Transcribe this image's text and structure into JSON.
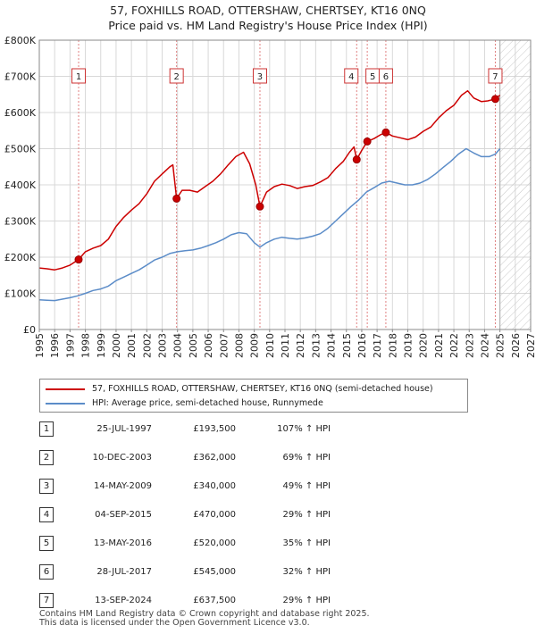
{
  "chart_data": {
    "type": "line",
    "title": "57, FOXHILLS ROAD, OTTERSHAW, CHERTSEY, KT16 0NQ",
    "subtitle": "Price paid vs. HM Land Registry's House Price Index (HPI)",
    "ylim": [
      0,
      800000
    ],
    "xlim": [
      1995,
      2027
    ],
    "y_ticks": [
      0,
      100000,
      200000,
      300000,
      400000,
      500000,
      600000,
      700000,
      800000
    ],
    "y_tick_labels": [
      "£0",
      "£100K",
      "£200K",
      "£300K",
      "£400K",
      "£500K",
      "£600K",
      "£700K",
      "£800K"
    ],
    "x_ticks": [
      1995,
      1996,
      1997,
      1998,
      1999,
      2000,
      2001,
      2002,
      2003,
      2004,
      2005,
      2006,
      2007,
      2008,
      2009,
      2010,
      2011,
      2012,
      2013,
      2014,
      2015,
      2016,
      2017,
      2018,
      2019,
      2020,
      2021,
      2022,
      2023,
      2024,
      2025,
      2026,
      2027
    ],
    "x_tick_labels": [
      "1995",
      "1996",
      "1997",
      "1998",
      "1999",
      "2000",
      "2001",
      "2002",
      "2003",
      "2004",
      "2005",
      "2006",
      "2007",
      "2008",
      "2009",
      "2010",
      "2011",
      "2012",
      "2013",
      "2014",
      "2015",
      "2016",
      "2017",
      "2018",
      "2019",
      "2020",
      "2021",
      "2022",
      "2023",
      "2024",
      "2025",
      "2026",
      "2027"
    ],
    "grid": true,
    "forecast_from": 2025.0,
    "series": [
      {
        "name": "57, FOXHILLS ROAD, OTTERSHAW, CHERTSEY, KT16 0NQ (semi-detached house)",
        "color": "#cc0000",
        "points": [
          [
            1995.0,
            170000
          ],
          [
            1995.5,
            168000
          ],
          [
            1996.0,
            165000
          ],
          [
            1996.5,
            170000
          ],
          [
            1997.0,
            178000
          ],
          [
            1997.56,
            193500
          ],
          [
            1998.0,
            215000
          ],
          [
            1998.5,
            225000
          ],
          [
            1999.0,
            232000
          ],
          [
            1999.5,
            250000
          ],
          [
            2000.0,
            285000
          ],
          [
            2000.5,
            310000
          ],
          [
            2001.0,
            330000
          ],
          [
            2001.5,
            348000
          ],
          [
            2002.0,
            375000
          ],
          [
            2002.5,
            410000
          ],
          [
            2003.0,
            430000
          ],
          [
            2003.5,
            450000
          ],
          [
            2003.7,
            455000
          ],
          [
            2003.94,
            362000
          ],
          [
            2004.3,
            385000
          ],
          [
            2004.8,
            385000
          ],
          [
            2005.3,
            380000
          ],
          [
            2005.8,
            395000
          ],
          [
            2006.3,
            410000
          ],
          [
            2006.8,
            430000
          ],
          [
            2007.3,
            455000
          ],
          [
            2007.8,
            478000
          ],
          [
            2008.3,
            490000
          ],
          [
            2008.7,
            458000
          ],
          [
            2009.1,
            400000
          ],
          [
            2009.37,
            340000
          ],
          [
            2009.8,
            380000
          ],
          [
            2010.3,
            395000
          ],
          [
            2010.8,
            402000
          ],
          [
            2011.3,
            398000
          ],
          [
            2011.8,
            390000
          ],
          [
            2012.3,
            395000
          ],
          [
            2012.8,
            398000
          ],
          [
            2013.3,
            408000
          ],
          [
            2013.8,
            420000
          ],
          [
            2014.3,
            445000
          ],
          [
            2014.8,
            465000
          ],
          [
            2015.2,
            490000
          ],
          [
            2015.5,
            505000
          ],
          [
            2015.67,
            470000
          ],
          [
            2016.0,
            495000
          ],
          [
            2016.36,
            520000
          ],
          [
            2016.8,
            528000
          ],
          [
            2017.2,
            538000
          ],
          [
            2017.57,
            545000
          ],
          [
            2018.0,
            535000
          ],
          [
            2018.5,
            530000
          ],
          [
            2019.0,
            525000
          ],
          [
            2019.5,
            532000
          ],
          [
            2020.0,
            548000
          ],
          [
            2020.5,
            560000
          ],
          [
            2021.0,
            585000
          ],
          [
            2021.5,
            605000
          ],
          [
            2022.0,
            620000
          ],
          [
            2022.5,
            648000
          ],
          [
            2022.9,
            660000
          ],
          [
            2023.3,
            640000
          ],
          [
            2023.8,
            630000
          ],
          [
            2024.2,
            632000
          ],
          [
            2024.7,
            637500
          ],
          [
            2025.0,
            648000
          ]
        ]
      },
      {
        "name": "HPI: Average price, semi-detached house, Runnymede",
        "color": "#5b8cc8",
        "points": [
          [
            1995.0,
            82000
          ],
          [
            1995.5,
            81000
          ],
          [
            1996.0,
            80000
          ],
          [
            1996.5,
            84000
          ],
          [
            1997.0,
            88000
          ],
          [
            1997.5,
            93000
          ],
          [
            1998.0,
            100000
          ],
          [
            1998.5,
            108000
          ],
          [
            1999.0,
            112000
          ],
          [
            1999.5,
            120000
          ],
          [
            2000.0,
            135000
          ],
          [
            2000.5,
            145000
          ],
          [
            2001.0,
            155000
          ],
          [
            2001.5,
            165000
          ],
          [
            2002.0,
            178000
          ],
          [
            2002.5,
            192000
          ],
          [
            2003.0,
            200000
          ],
          [
            2003.5,
            210000
          ],
          [
            2004.0,
            215000
          ],
          [
            2004.5,
            218000
          ],
          [
            2005.0,
            220000
          ],
          [
            2005.5,
            225000
          ],
          [
            2006.0,
            232000
          ],
          [
            2006.5,
            240000
          ],
          [
            2007.0,
            250000
          ],
          [
            2007.5,
            262000
          ],
          [
            2008.0,
            268000
          ],
          [
            2008.5,
            265000
          ],
          [
            2009.0,
            240000
          ],
          [
            2009.37,
            228000
          ],
          [
            2009.8,
            240000
          ],
          [
            2010.3,
            250000
          ],
          [
            2010.8,
            255000
          ],
          [
            2011.3,
            252000
          ],
          [
            2011.8,
            250000
          ],
          [
            2012.3,
            253000
          ],
          [
            2012.8,
            258000
          ],
          [
            2013.3,
            265000
          ],
          [
            2013.8,
            280000
          ],
          [
            2014.3,
            300000
          ],
          [
            2014.8,
            320000
          ],
          [
            2015.3,
            340000
          ],
          [
            2015.8,
            358000
          ],
          [
            2016.3,
            380000
          ],
          [
            2016.8,
            392000
          ],
          [
            2017.3,
            405000
          ],
          [
            2017.8,
            410000
          ],
          [
            2018.3,
            405000
          ],
          [
            2018.8,
            400000
          ],
          [
            2019.3,
            400000
          ],
          [
            2019.8,
            405000
          ],
          [
            2020.3,
            415000
          ],
          [
            2020.8,
            430000
          ],
          [
            2021.3,
            448000
          ],
          [
            2021.8,
            465000
          ],
          [
            2022.3,
            485000
          ],
          [
            2022.8,
            500000
          ],
          [
            2023.3,
            488000
          ],
          [
            2023.8,
            478000
          ],
          [
            2024.3,
            478000
          ],
          [
            2024.7,
            485000
          ],
          [
            2025.0,
            500000
          ]
        ]
      }
    ],
    "sales": [
      {
        "label": "1",
        "x": 1997.56,
        "y": 193500,
        "date": "25-JUL-1997",
        "price": "£193,500",
        "hpi": "107% ↑ HPI"
      },
      {
        "label": "2",
        "x": 2003.94,
        "y": 362000,
        "date": "10-DEC-2003",
        "price": "£362,000",
        "hpi": "69% ↑ HPI"
      },
      {
        "label": "3",
        "x": 2009.37,
        "y": 340000,
        "date": "14-MAY-2009",
        "price": "£340,000",
        "hpi": "49% ↑ HPI"
      },
      {
        "label": "4",
        "x": 2015.67,
        "y": 470000,
        "date": "04-SEP-2015",
        "price": "£470,000",
        "hpi": "29% ↑ HPI"
      },
      {
        "label": "5",
        "x": 2016.36,
        "y": 520000,
        "date": "13-MAY-2016",
        "price": "£520,000",
        "hpi": "35% ↑ HPI"
      },
      {
        "label": "6",
        "x": 2017.57,
        "y": 545000,
        "date": "28-JUL-2017",
        "price": "£545,000",
        "hpi": "32% ↑ HPI"
      },
      {
        "label": "7",
        "x": 2024.7,
        "y": 637500,
        "date": "13-SEP-2024",
        "price": "£637,500",
        "hpi": "29% ↑ HPI"
      }
    ]
  },
  "legend": {
    "items": [
      {
        "label": "57, FOXHILLS ROAD, OTTERSHAW, CHERTSEY, KT16 0NQ (semi-detached house)",
        "color": "#cc0000"
      },
      {
        "label": "HPI: Average price, semi-detached house, Runnymede",
        "color": "#5b8cc8"
      }
    ]
  },
  "footer": {
    "line1": "Contains HM Land Registry data © Crown copyright and database right 2025.",
    "line2": "This data is licensed under the Open Government Licence v3.0."
  }
}
